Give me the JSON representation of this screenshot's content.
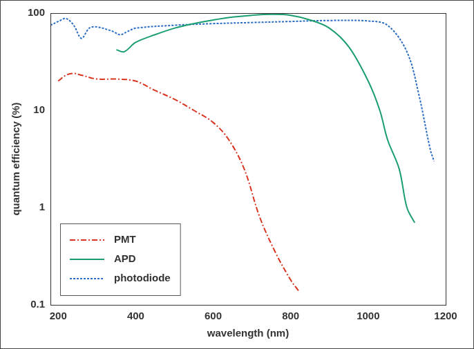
{
  "chart_data": {
    "type": "line",
    "x_label": "wavelength (nm)",
    "y_label": "quantum efficiency (%)",
    "log": "y",
    "grid": false,
    "legend": "lower left",
    "xlim": [
      180,
      1200
    ],
    "xticks": [
      200,
      400,
      600,
      800,
      1000,
      1200
    ],
    "ylim": [
      0.1,
      100
    ],
    "yticks": [
      0.1,
      1,
      10,
      100
    ],
    "series": [
      {
        "name": "PMT",
        "color": "#d9341f",
        "line_style": "dashdot",
        "x": [
          200,
          220,
          240,
          260,
          300,
          350,
          400,
          450,
          500,
          550,
          600,
          640,
          680,
          720,
          760,
          800,
          820
        ],
        "values": [
          20,
          23,
          24,
          23,
          21,
          21,
          20,
          16,
          13,
          10,
          7.5,
          5,
          2.5,
          0.8,
          0.35,
          0.18,
          0.14
        ]
      },
      {
        "name": "APD",
        "color": "#1a9e6e",
        "line_style": "solid",
        "x": [
          350,
          370,
          400,
          450,
          500,
          550,
          600,
          650,
          700,
          750,
          800,
          850,
          900,
          950,
          1000,
          1030,
          1050,
          1080,
          1100,
          1120
        ],
        "values": [
          42,
          40,
          50,
          60,
          70,
          78,
          85,
          91,
          95,
          97,
          95,
          85,
          70,
          45,
          20,
          10,
          5,
          2.5,
          1,
          0.7
        ]
      },
      {
        "name": "photodiode",
        "color": "#2b6cc4",
        "line_style": "dotted",
        "x": [
          180,
          200,
          220,
          240,
          260,
          280,
          300,
          340,
          360,
          380,
          400,
          500,
          600,
          700,
          800,
          900,
          1000,
          1050,
          1100,
          1130,
          1160,
          1170
        ],
        "values": [
          75,
          82,
          88,
          75,
          55,
          70,
          72,
          65,
          60,
          65,
          70,
          75,
          78,
          80,
          82,
          84,
          83,
          75,
          40,
          15,
          4,
          3
        ]
      }
    ]
  }
}
